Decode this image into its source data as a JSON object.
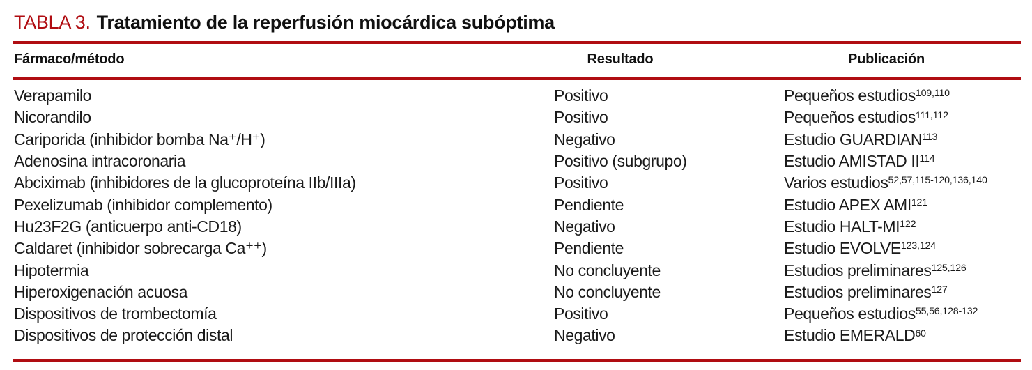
{
  "page": {
    "title_label": "TABLA 3.",
    "title_text": "Tratamiento de la reperfusión miocárdica subóptima"
  },
  "table": {
    "headers": {
      "col1": "Fármaco/método",
      "col2": "Resultado",
      "col3": "Publicación"
    },
    "rows": [
      {
        "farmaco": "Verapamilo",
        "resultado": "Positivo",
        "publicacion": "Pequeños estudios",
        "refs": "109,110"
      },
      {
        "farmaco": "Nicorandilo",
        "resultado": "Positivo",
        "publicacion": "Pequeños estudios",
        "refs": "111,112"
      },
      {
        "farmaco": "Cariporida (inhibidor bomba Na⁺/H⁺)",
        "resultado": "Negativo",
        "publicacion": "Estudio GUARDIAN",
        "refs": "113"
      },
      {
        "farmaco": "Adenosina intracoronaria",
        "resultado": "Positivo (subgrupo)",
        "publicacion": "Estudio AMISTAD II",
        "refs": "114"
      },
      {
        "farmaco": "Abciximab (inhibidores de la glucoproteína IIb/IIIa)",
        "resultado": "Positivo",
        "publicacion": "Varios estudios",
        "refs": "52,57,115-120,136,140"
      },
      {
        "farmaco": "Pexelizumab (inhibidor complemento)",
        "resultado": "Pendiente",
        "publicacion": "Estudio APEX AMI",
        "refs": "121"
      },
      {
        "farmaco": "Hu23F2G (anticuerpo anti-CD18)",
        "resultado": "Negativo",
        "publicacion": "Estudio HALT-MI",
        "refs": "122"
      },
      {
        "farmaco": "Caldaret (inhibidor sobrecarga Ca⁺⁺)",
        "resultado": "Pendiente",
        "publicacion": "Estudio EVOLVE",
        "refs": "123,124"
      },
      {
        "farmaco": "Hipotermia",
        "resultado": "No concluyente",
        "publicacion": "Estudios preliminares",
        "refs": "125,126"
      },
      {
        "farmaco": "Hiperoxigenación acuosa",
        "resultado": "No concluyente",
        "publicacion": "Estudios preliminares",
        "refs": "127"
      },
      {
        "farmaco": "Dispositivos de trombectomía",
        "resultado": "Positivo",
        "publicacion": "Pequeños estudios",
        "refs": "55,56,128-132"
      },
      {
        "farmaco": "Dispositivos de protección distal",
        "resultado": "Negativo",
        "publicacion": "Estudio EMERALD",
        "refs": "60"
      }
    ]
  },
  "colors": {
    "accent_red": "#b00d12",
    "text": "#1a1a1a"
  }
}
